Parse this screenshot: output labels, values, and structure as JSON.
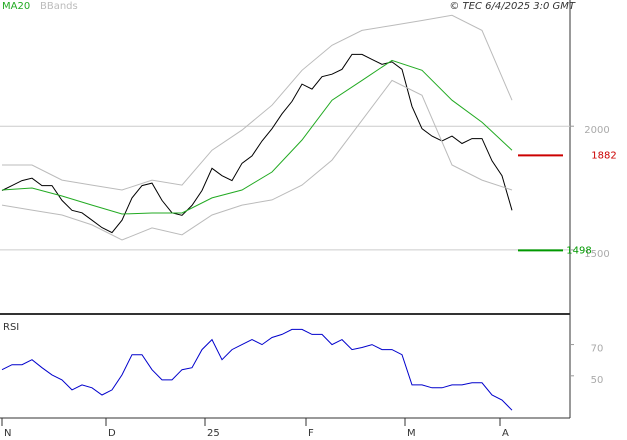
{
  "chart_data": [
    {
      "type": "line",
      "annotation": "© TEC 6/4/2025 3:0 GMT",
      "xlim": [
        -0.2,
        56.8
      ],
      "x": [
        0,
        1,
        2,
        3,
        4,
        5,
        6,
        7,
        8,
        9,
        10,
        11,
        12,
        13,
        14,
        15,
        16,
        17,
        18,
        19,
        20,
        21,
        22,
        23,
        24,
        25,
        26,
        27,
        28,
        29,
        30,
        31,
        32,
        33,
        34,
        35,
        36,
        37,
        38,
        39,
        40,
        41,
        42,
        43,
        44,
        45,
        46,
        47,
        48,
        49,
        50,
        51
      ],
      "ylim": [
        1245,
        2510
      ],
      "yticks": [
        1500,
        2000
      ],
      "grid": true,
      "series": [
        {
          "color": "#000000",
          "values": [
            1740,
            1760,
            1780,
            1790,
            1760,
            1760,
            1700,
            1660,
            1650,
            1620,
            1590,
            1570,
            1620,
            1710,
            1760,
            1770,
            1700,
            1650,
            1640,
            1680,
            1740,
            1830,
            1800,
            1780,
            1850,
            1880,
            1940,
            1990,
            2050,
            2100,
            2170,
            2150,
            2200,
            2210,
            2230,
            2290,
            2290,
            2270,
            2250,
            2260,
            2230,
            2080,
            1990,
            1960,
            1940,
            1960,
            1930,
            1950,
            1950,
            1860,
            1800,
            1660
          ]
        },
        {
          "name": "MA20",
          "color": "#22aa22",
          "x": [
            0,
            3,
            6,
            9,
            12,
            15,
            18,
            21,
            24,
            27,
            30,
            33,
            36,
            39,
            42,
            45,
            48,
            51
          ],
          "values": [
            1742,
            1750,
            1718,
            1681,
            1645,
            1649,
            1649,
            1710,
            1742,
            1815,
            1944,
            2105,
            2185,
            2266,
            2226,
            2105,
            2016,
            1903
          ]
        },
        {
          "name": "BBands",
          "color": "#bbbbbb",
          "x": [
            0,
            3,
            6,
            9,
            12,
            15,
            18,
            21,
            24,
            27,
            30,
            33,
            36,
            39,
            42,
            45,
            48,
            51
          ],
          "values": [
            1843,
            1843,
            1782,
            1762,
            1742,
            1782,
            1762,
            1903,
            1984,
            2085,
            2226,
            2327,
            2387,
            2407,
            2427,
            2448,
            2387,
            2105
          ]
        },
        {
          "color": "#bbbbbb",
          "x": [
            0,
            3,
            6,
            9,
            12,
            15,
            18,
            21,
            24,
            27,
            30,
            33,
            36,
            39,
            42,
            45,
            48,
            51
          ],
          "values": [
            1681,
            1661,
            1641,
            1601,
            1540,
            1589,
            1561,
            1641,
            1681,
            1702,
            1762,
            1863,
            2024,
            2185,
            2125,
            1843,
            1782,
            1742
          ]
        }
      ],
      "levels": [
        {
          "value": 1882,
          "color": "#cc0000"
        },
        {
          "value": 1498,
          "color": "#009900"
        }
      ]
    },
    {
      "type": "line",
      "title": "RSI",
      "xlim": [
        -0.2,
        56.8
      ],
      "x": [
        0,
        1,
        2,
        3,
        4,
        5,
        6,
        7,
        8,
        9,
        10,
        11,
        12,
        13,
        14,
        15,
        16,
        17,
        18,
        19,
        20,
        21,
        22,
        23,
        24,
        25,
        26,
        27,
        28,
        29,
        30,
        31,
        32,
        33,
        34,
        35,
        36,
        37,
        38,
        39,
        40,
        41,
        42,
        43,
        44,
        45,
        46,
        47,
        48,
        49,
        50,
        51
      ],
      "xticks": [
        {
          "value": 0,
          "label": "N"
        },
        {
          "value": 10.4,
          "label": "D"
        },
        {
          "value": 20.3,
          "label": "25"
        },
        {
          "value": 30.4,
          "label": "F"
        },
        {
          "value": 40.3,
          "label": "M"
        },
        {
          "value": 49.8,
          "label": "A"
        }
      ],
      "ylim": [
        23,
        87
      ],
      "yticks": [
        50,
        70
      ],
      "grid": false,
      "series": [
        {
          "color": "#0000cc",
          "values": [
            53.9,
            57.1,
            57.1,
            60.3,
            55.2,
            50.6,
            47.4,
            41,
            44.2,
            42.3,
            37.7,
            41,
            50.6,
            63.5,
            63.5,
            53.9,
            47.4,
            47.4,
            53.9,
            55.2,
            66.8,
            73.2,
            60.3,
            66.8,
            70,
            73.2,
            70,
            74.5,
            76.5,
            79.7,
            79.7,
            76.5,
            76.5,
            70,
            73.2,
            66.8,
            68.1,
            70,
            66.8,
            66.8,
            63.5,
            44.2,
            44.2,
            42.3,
            42.3,
            44.2,
            44.2,
            45.5,
            45.5,
            37.7,
            34.5,
            28
          ]
        }
      ]
    }
  ]
}
